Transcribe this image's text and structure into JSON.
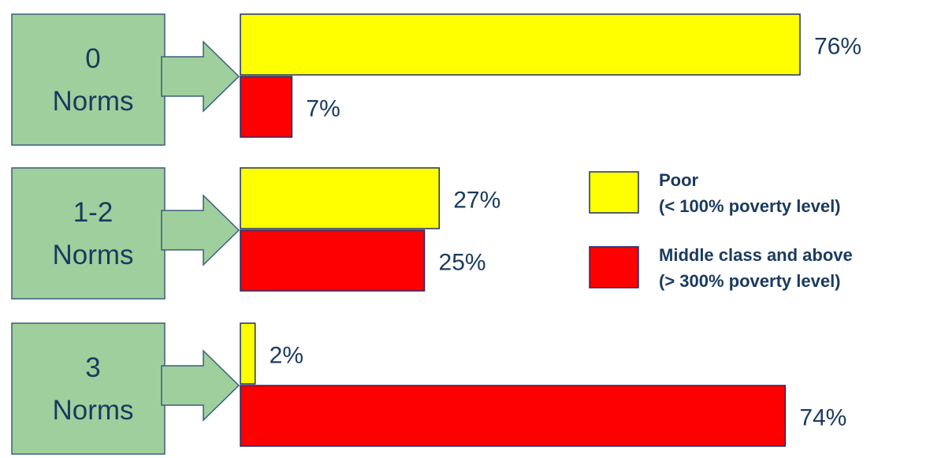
{
  "chart_data": {
    "type": "bar",
    "orientation": "horizontal",
    "categories": [
      "0\nNorms",
      "1-2\nNorms",
      "3\nNorms"
    ],
    "category_lines": [
      [
        "0",
        "Norms"
      ],
      [
        "1-2",
        "Norms"
      ],
      [
        "3",
        "Norms"
      ]
    ],
    "series": [
      {
        "name": "Poor",
        "legend_lines": [
          "Poor",
          "(< 100% poverty level)"
        ],
        "color": "#ffff00",
        "values": [
          76,
          27,
          2
        ],
        "labels": [
          "76%",
          "27%",
          "2%"
        ]
      },
      {
        "name": "Middle class and above",
        "legend_lines": [
          "Middle class and above",
          "(> 300% poverty level)"
        ],
        "color": "#ff0000",
        "values": [
          7,
          25,
          74
        ],
        "labels": [
          "7%",
          "25%",
          "74%"
        ]
      }
    ],
    "xlim": [
      0,
      100
    ],
    "unit": "%",
    "grid": false,
    "legend_position": "right",
    "colors": {
      "category_box": "#9fcf9c",
      "category_border": "#3a5f7a",
      "bar_border": "#1f2f6b",
      "text": "#1a3a5f"
    }
  }
}
